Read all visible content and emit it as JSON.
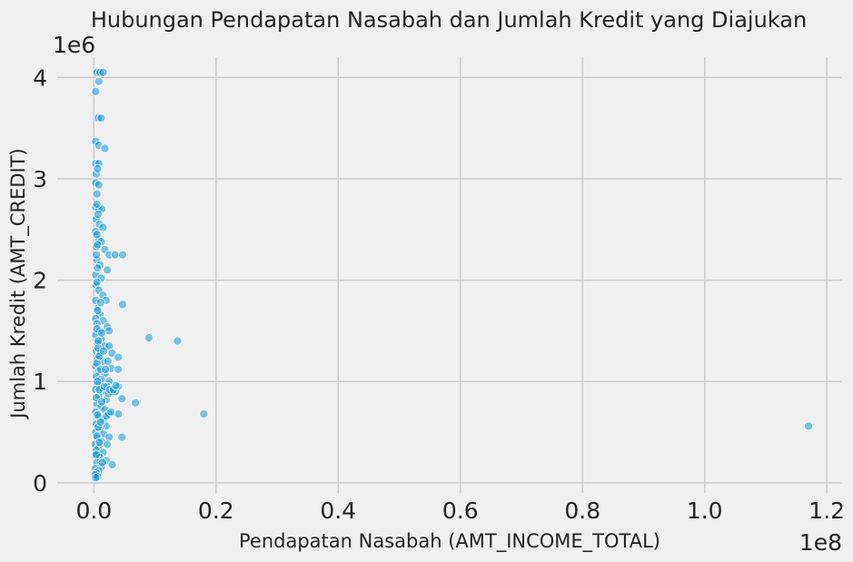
{
  "chart_data": {
    "type": "scatter",
    "title": "Hubungan Pendapatan Nasabah dan Jumlah Kredit yang Diajukan",
    "xlabel": "Pendapatan Nasabah (AMT_INCOME_TOTAL)",
    "ylabel": "Jumlah Kredit (AMT_CREDIT)",
    "x_offset_label": "1e8",
    "y_offset_label": "1e6",
    "xlim": [
      -0.06,
      1.225
    ],
    "ylim": [
      -0.1,
      4.2
    ],
    "x_ticks": [
      0.0,
      0.2,
      0.4,
      0.6,
      0.8,
      1.0,
      1.2
    ],
    "x_tick_labels": [
      "0.0",
      "0.2",
      "0.4",
      "0.6",
      "0.8",
      "1.0",
      "1.2"
    ],
    "y_ticks": [
      0,
      1,
      2,
      3,
      4
    ],
    "y_tick_labels": [
      "0",
      "1",
      "2",
      "3",
      "4"
    ],
    "grid": true,
    "x_scale_note": "x values in units of 1e8",
    "y_scale_note": "y values in units of 1e6",
    "points": [
      [
        0.005,
        4.05
      ],
      [
        0.01,
        4.05
      ],
      [
        0.015,
        4.05
      ],
      [
        0.008,
        3.96
      ],
      [
        0.003,
        3.86
      ],
      [
        0.007,
        3.6
      ],
      [
        0.012,
        3.6
      ],
      [
        0.003,
        3.37
      ],
      [
        0.008,
        3.33
      ],
      [
        0.018,
        3.3
      ],
      [
        0.003,
        3.15
      ],
      [
        0.008,
        3.15
      ],
      [
        0.004,
        3.05
      ],
      [
        0.003,
        2.96
      ],
      [
        0.008,
        2.94
      ],
      [
        0.005,
        2.85
      ],
      [
        0.003,
        2.72
      ],
      [
        0.008,
        2.7
      ],
      [
        0.013,
        2.7
      ],
      [
        0.004,
        2.6
      ],
      [
        0.009,
        2.55
      ],
      [
        0.015,
        2.52
      ],
      [
        0.003,
        2.48
      ],
      [
        0.008,
        2.4
      ],
      [
        0.012,
        2.38
      ],
      [
        0.004,
        2.33
      ],
      [
        0.018,
        2.3
      ],
      [
        0.025,
        2.25
      ],
      [
        0.035,
        2.25
      ],
      [
        0.047,
        2.25
      ],
      [
        0.005,
        2.2
      ],
      [
        0.01,
        2.15
      ],
      [
        0.022,
        2.1
      ],
      [
        0.003,
        2.05
      ],
      [
        0.012,
        2.02
      ],
      [
        0.004,
        1.95
      ],
      [
        0.008,
        1.9
      ],
      [
        0.015,
        1.85
      ],
      [
        0.003,
        1.8
      ],
      [
        0.02,
        1.8
      ],
      [
        0.047,
        1.76
      ],
      [
        0.006,
        1.72
      ],
      [
        0.01,
        1.66
      ],
      [
        0.003,
        1.62
      ],
      [
        0.015,
        1.6
      ],
      [
        0.005,
        1.57
      ],
      [
        0.022,
        1.54
      ],
      [
        0.01,
        1.5
      ],
      [
        0.025,
        1.5
      ],
      [
        0.003,
        1.46
      ],
      [
        0.09,
        1.43
      ],
      [
        0.137,
        1.4
      ],
      [
        0.012,
        1.42
      ],
      [
        0.006,
        1.38
      ],
      [
        0.018,
        1.35
      ],
      [
        0.025,
        1.35
      ],
      [
        0.004,
        1.3
      ],
      [
        0.01,
        1.28
      ],
      [
        0.03,
        1.28
      ],
      [
        0.04,
        1.24
      ],
      [
        0.006,
        1.22
      ],
      [
        0.015,
        1.2
      ],
      [
        0.003,
        1.15
      ],
      [
        0.028,
        1.13
      ],
      [
        0.04,
        1.12
      ],
      [
        0.008,
        1.1
      ],
      [
        0.018,
        1.08
      ],
      [
        0.004,
        1.05
      ],
      [
        0.012,
        1.02
      ],
      [
        0.025,
        1.0
      ],
      [
        0.006,
        0.97
      ],
      [
        0.022,
        0.95
      ],
      [
        0.04,
        0.95
      ],
      [
        0.003,
        0.92
      ],
      [
        0.015,
        0.9
      ],
      [
        0.03,
        0.9
      ],
      [
        0.035,
        0.9
      ],
      [
        0.008,
        0.86
      ],
      [
        0.046,
        0.83
      ],
      [
        0.02,
        0.82
      ],
      [
        0.068,
        0.79
      ],
      [
        0.005,
        0.78
      ],
      [
        0.012,
        0.75
      ],
      [
        0.018,
        0.72
      ],
      [
        0.003,
        0.7
      ],
      [
        0.04,
        0.68
      ],
      [
        0.18,
        0.68
      ],
      [
        0.025,
        0.68
      ],
      [
        0.008,
        0.65
      ],
      [
        0.015,
        0.62
      ],
      [
        0.004,
        0.58
      ],
      [
        0.02,
        0.56
      ],
      [
        1.17,
        0.56
      ],
      [
        0.01,
        0.53
      ],
      [
        0.003,
        0.5
      ],
      [
        0.016,
        0.48
      ],
      [
        0.046,
        0.45
      ],
      [
        0.025,
        0.45
      ],
      [
        0.006,
        0.44
      ],
      [
        0.012,
        0.41
      ],
      [
        0.002,
        0.38
      ],
      [
        0.022,
        0.38
      ],
      [
        0.008,
        0.35
      ],
      [
        0.004,
        0.32
      ],
      [
        0.015,
        0.3
      ],
      [
        0.003,
        0.27
      ],
      [
        0.01,
        0.25
      ],
      [
        0.02,
        0.22
      ],
      [
        0.005,
        0.2
      ],
      [
        0.03,
        0.18
      ],
      [
        0.012,
        0.16
      ],
      [
        0.002,
        0.14
      ],
      [
        0.008,
        0.12
      ],
      [
        0.004,
        0.1
      ],
      [
        0.002,
        0.08
      ],
      [
        0.006,
        0.06
      ],
      [
        0.003,
        0.05
      ],
      [
        0.005,
        2.75
      ],
      [
        0.005,
        2.45
      ],
      [
        0.004,
        2.25
      ],
      [
        0.006,
        2.12
      ],
      [
        0.005,
        1.98
      ],
      [
        0.006,
        1.7
      ],
      [
        0.005,
        1.52
      ],
      [
        0.007,
        1.33
      ],
      [
        0.005,
        1.18
      ],
      [
        0.006,
        1.0
      ],
      [
        0.004,
        0.84
      ],
      [
        0.006,
        0.67
      ],
      [
        0.005,
        0.46
      ],
      [
        0.004,
        0.28
      ],
      [
        0.006,
        3.1
      ],
      [
        0.007,
        2.65
      ],
      [
        0.006,
        2.35
      ],
      [
        0.007,
        1.4
      ],
      [
        0.007,
        0.55
      ],
      [
        0.009,
        1.25
      ],
      [
        0.009,
        0.92
      ],
      [
        0.009,
        0.4
      ],
      [
        0.011,
        1.78
      ],
      [
        0.011,
        1.12
      ],
      [
        0.011,
        0.6
      ],
      [
        0.013,
        1.48
      ],
      [
        0.013,
        0.8
      ],
      [
        0.014,
        0.2
      ],
      [
        0.016,
        1.3
      ],
      [
        0.017,
        0.95
      ],
      [
        0.019,
        1.12
      ],
      [
        0.021,
        0.66
      ],
      [
        0.023,
        1.2
      ],
      [
        0.024,
        0.88
      ],
      [
        0.026,
        0.92
      ],
      [
        0.028,
        0.7
      ],
      [
        0.032,
        0.92
      ],
      [
        0.036,
        0.96
      ]
    ]
  }
}
